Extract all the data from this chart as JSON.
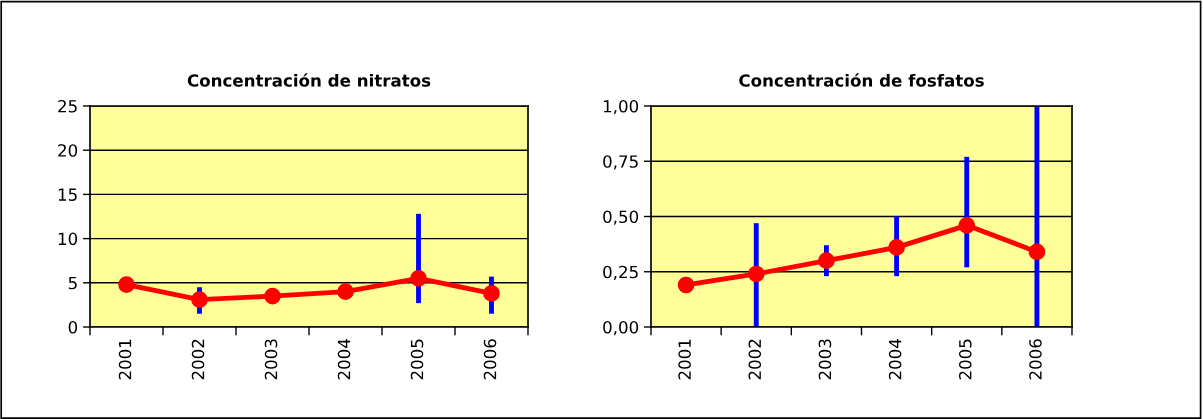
{
  "chart_data": [
    {
      "type": "line",
      "title": "Concentración de nitratos",
      "categories": [
        "2001",
        "2002",
        "2003",
        "2004",
        "2005",
        "2006"
      ],
      "series": [
        {
          "color": "#ff0000",
          "values": [
            4.8,
            3.1,
            3.5,
            4.0,
            5.5,
            3.8
          ],
          "errors": [
            null,
            [
              1.5,
              4.5
            ],
            null,
            null,
            [
              2.7,
              12.8
            ],
            [
              1.5,
              5.7
            ]
          ]
        }
      ],
      "ylim": [
        0,
        25
      ],
      "yticks": [
        0,
        5,
        10,
        15,
        20,
        25
      ],
      "grid": "y",
      "marker": "circle",
      "line_style": "solid"
    },
    {
      "type": "line",
      "title": "Concentración de fosfatos",
      "categories": [
        "2001",
        "2002",
        "2003",
        "2004",
        "2005",
        "2006"
      ],
      "series": [
        {
          "color": "#ff0000",
          "values": [
            0.19,
            0.24,
            0.3,
            0.36,
            0.46,
            0.34
          ],
          "errors": [
            null,
            [
              0.0,
              0.47
            ],
            [
              0.23,
              0.37
            ],
            [
              0.23,
              0.5
            ],
            [
              0.27,
              0.77
            ],
            [
              0.0,
              1.0
            ]
          ]
        }
      ],
      "ylim": [
        0,
        1.0
      ],
      "yticks": [
        {
          "value": 0,
          "label": "0,00"
        },
        {
          "value": 0.25,
          "label": "0,25"
        },
        {
          "value": 0.5,
          "label": "0,50"
        },
        {
          "value": 0.75,
          "label": "0,75"
        },
        {
          "value": 1.0,
          "label": "1,00"
        }
      ],
      "grid": "y",
      "marker": "circle",
      "line_style": "solid"
    }
  ]
}
